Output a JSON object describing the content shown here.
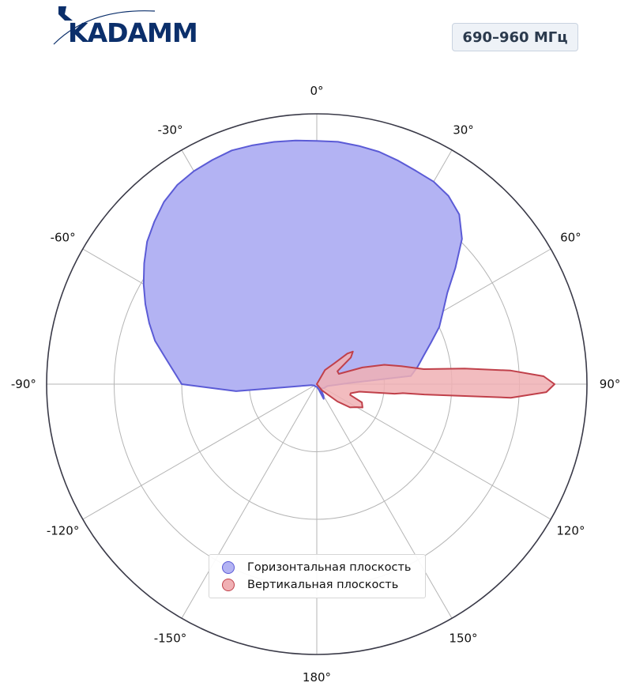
{
  "brand": {
    "name": "KADAMM"
  },
  "badge": {
    "frequency": "690–960 МГц"
  },
  "chart_data": {
    "type": "polar-area",
    "title": "",
    "angular_unit": "degrees",
    "angle_ticks": [
      {
        "angle": 0,
        "label": "0°"
      },
      {
        "angle": 30,
        "label": "30°"
      },
      {
        "angle": 60,
        "label": "60°"
      },
      {
        "angle": 90,
        "label": "90°"
      },
      {
        "angle": 120,
        "label": "120°"
      },
      {
        "angle": 150,
        "label": "150°"
      },
      {
        "angle": 180,
        "label": "180°"
      },
      {
        "angle": -150,
        "label": "-150°"
      },
      {
        "angle": -120,
        "label": "-120°"
      },
      {
        "angle": -90,
        "label": "-90°"
      },
      {
        "angle": -60,
        "label": "-60°"
      },
      {
        "angle": -30,
        "label": "-30°"
      }
    ],
    "radial_range": [
      0,
      1
    ],
    "radial_gridlines": [
      0.25,
      0.5,
      0.75
    ],
    "grid": true,
    "legend_position": "bottom-center",
    "series": [
      {
        "name": "Горизонтальная плоскость",
        "color": "#5b5bd6",
        "fill": "#b3b3f3",
        "points": [
          [
            -90,
            0.5
          ],
          [
            -80,
            0.57
          ],
          [
            -75,
            0.62
          ],
          [
            -70,
            0.66
          ],
          [
            -65,
            0.7
          ],
          [
            -60,
            0.74
          ],
          [
            -55,
            0.78
          ],
          [
            -50,
            0.82
          ],
          [
            -45,
            0.85
          ],
          [
            -40,
            0.88
          ],
          [
            -35,
            0.9
          ],
          [
            -30,
            0.91
          ],
          [
            -25,
            0.915
          ],
          [
            -20,
            0.92
          ],
          [
            -15,
            0.915
          ],
          [
            -10,
            0.91
          ],
          [
            -5,
            0.905
          ],
          [
            0,
            0.9
          ],
          [
            5,
            0.9
          ],
          [
            10,
            0.895
          ],
          [
            15,
            0.89
          ],
          [
            20,
            0.88
          ],
          [
            25,
            0.87
          ],
          [
            30,
            0.865
          ],
          [
            35,
            0.85
          ],
          [
            40,
            0.82
          ],
          [
            45,
            0.76
          ],
          [
            50,
            0.67
          ],
          [
            55,
            0.59
          ],
          [
            60,
            0.54
          ],
          [
            65,
            0.5
          ],
          [
            70,
            0.45
          ],
          [
            75,
            0.41
          ],
          [
            80,
            0.38
          ],
          [
            85,
            0.35
          ],
          [
            88,
            0.12
          ],
          [
            100,
            0.04
          ],
          [
            120,
            0.03
          ],
          [
            140,
            0.02
          ],
          [
            150,
            0.05
          ],
          [
            155,
            0.06
          ],
          [
            160,
            0.02
          ],
          [
            180,
            0.01
          ],
          [
            -160,
            0.01
          ],
          [
            -140,
            0.01
          ],
          [
            -120,
            0.01
          ],
          [
            -100,
            0.02
          ],
          [
            -95,
            0.3
          ]
        ]
      },
      {
        "name": "Вертикальная плоскость",
        "color": "#c0404a",
        "fill": "#f0b0b4",
        "points": [
          [
            0,
            0.0
          ],
          [
            30,
            0.06
          ],
          [
            40,
            0.1
          ],
          [
            45,
            0.16
          ],
          [
            48,
            0.18
          ],
          [
            52,
            0.16
          ],
          [
            58,
            0.09
          ],
          [
            65,
            0.09
          ],
          [
            70,
            0.18
          ],
          [
            74,
            0.26
          ],
          [
            78,
            0.32
          ],
          [
            82,
            0.4
          ],
          [
            84,
            0.55
          ],
          [
            86,
            0.72
          ],
          [
            88,
            0.84
          ],
          [
            90,
            0.88
          ],
          [
            92,
            0.85
          ],
          [
            94,
            0.72
          ],
          [
            95.5,
            0.4
          ],
          [
            96,
            0.32
          ],
          [
            97,
            0.29
          ],
          [
            100,
            0.16
          ],
          [
            105,
            0.13
          ],
          [
            108,
            0.13
          ],
          [
            112,
            0.18
          ],
          [
            117,
            0.19
          ],
          [
            120,
            0.17
          ],
          [
            125,
            0.15
          ],
          [
            130,
            0.1
          ],
          [
            140,
            0.03
          ],
          [
            180,
            0.0
          ],
          [
            -90,
            0.0
          ],
          [
            -60,
            0.0
          ],
          [
            -30,
            0.0
          ]
        ]
      }
    ]
  }
}
